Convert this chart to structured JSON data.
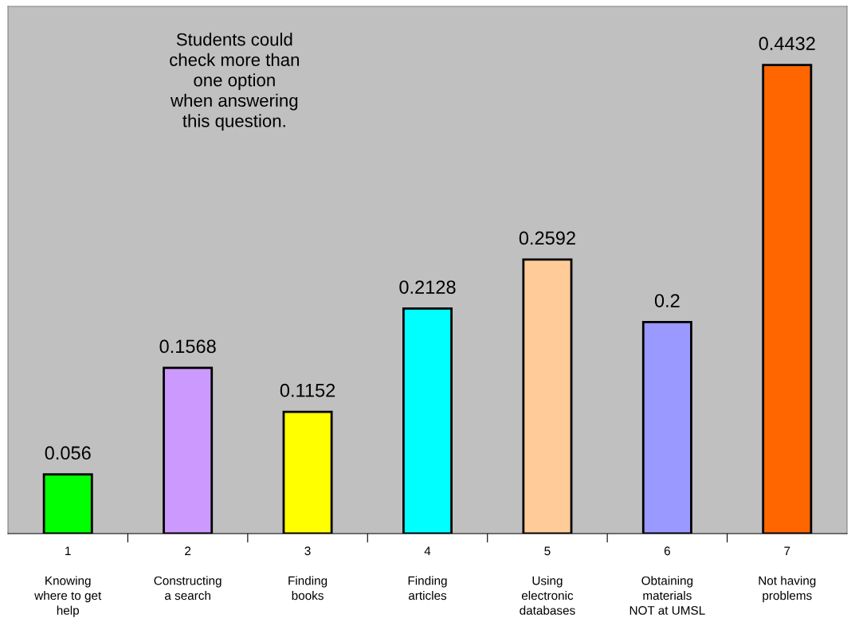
{
  "chart_data": {
    "type": "bar",
    "categories": [
      "1\n\nKnowing\nwhere to get\nhelp",
      "2\n\nConstructing\na search",
      "3\n\nFinding\nbooks",
      "4\n\nFinding\narticles",
      "5\n\nUsing\nelectronic\ndatabases",
      "6\n\nObtaining\nmaterials\nNOT at UMSL",
      "7\n\nNot having\nproblems"
    ],
    "values": [
      0.056,
      0.1568,
      0.1152,
      0.2128,
      0.2592,
      0.2,
      0.4432
    ],
    "colors": [
      "#00ff00",
      "#cc99ff",
      "#ffff00",
      "#00ffff",
      "#ffcc99",
      "#9999ff",
      "#ff6600"
    ],
    "data_labels": true,
    "annotations": [
      "Students could\ncheck more than\none option\nwhen answering\nthis question."
    ],
    "grid": false,
    "legend": false
  }
}
